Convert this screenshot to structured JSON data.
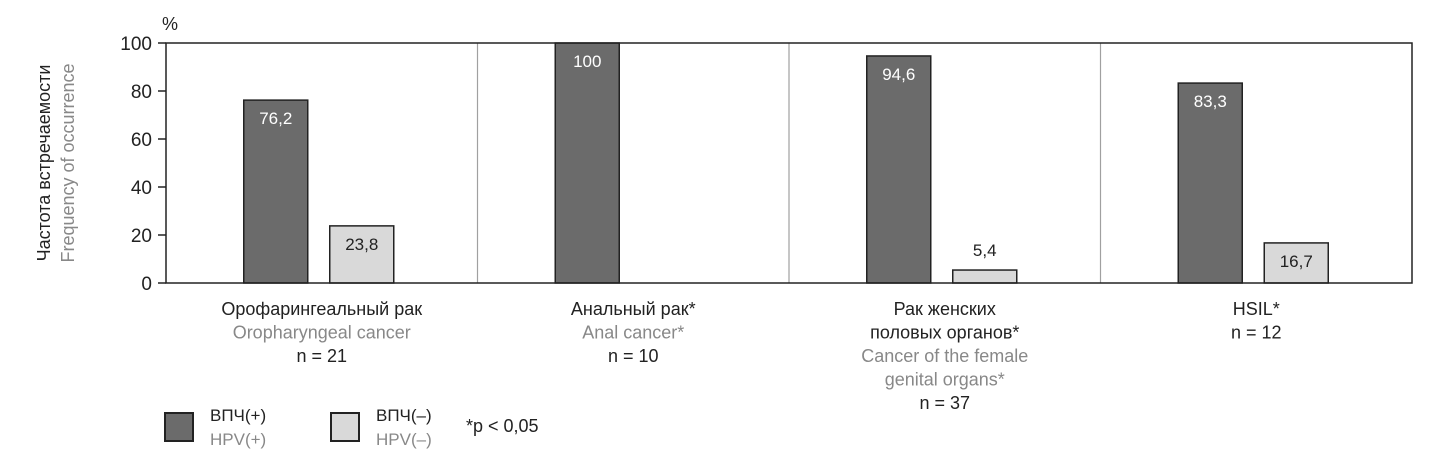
{
  "chart_data": {
    "type": "bar",
    "y_unit": "%",
    "ylabel_ru": "Частота встречаемости",
    "ylabel_en": "Frequency of occurrence",
    "ylim": [
      0,
      100
    ],
    "yticks": [
      0,
      20,
      40,
      60,
      80,
      100
    ],
    "grid": false,
    "categories": [
      {
        "label_ru": "Орофарингеальный рак",
        "label_en": "Oropharyngeal cancer",
        "n": "n = 21"
      },
      {
        "label_ru": "Анальный рак*",
        "label_en": "Anal cancer*",
        "n": "n = 10"
      },
      {
        "label_ru": "Рак женских\nполовых органов*",
        "label_en": "Cancer of the female\ngenital organs*",
        "n": "n = 37"
      },
      {
        "label_ru": "HSIL*",
        "label_en": "",
        "n": "n = 12"
      }
    ],
    "series": [
      {
        "name": "ВПЧ(+)",
        "name_en": "HPV(+)",
        "color": "#6b6b6b",
        "values": [
          76.2,
          100,
          94.6,
          83.3
        ],
        "labels": [
          "76,2",
          "100",
          "94,6",
          "83,3"
        ]
      },
      {
        "name": "ВПЧ(–)",
        "name_en": "HPV(–)",
        "color": "#d9d9d9",
        "values": [
          23.8,
          0,
          5.4,
          16.7
        ],
        "labels": [
          "23,8",
          "",
          "5,4",
          "16,7"
        ]
      }
    ],
    "note": "*p < 0,05"
  },
  "colors": {
    "hpv_pos": "#6b6b6b",
    "hpv_neg": "#d9d9d9",
    "axis": "#222222",
    "divider": "#a0a0a0",
    "en_text": "#888888"
  }
}
